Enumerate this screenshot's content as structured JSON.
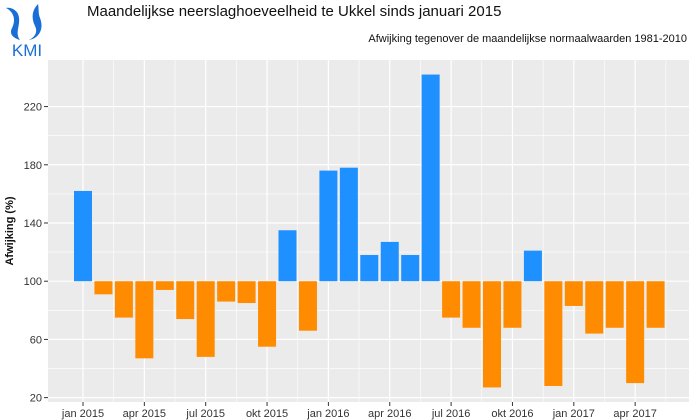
{
  "header": {
    "title": "Maandelijkse neerslaghoeveelheid te Ukkel sinds januari 2015",
    "subtitle": "Afwijking tegenover de maandelijkse normaalwaarden 1981-2010",
    "logo_text": "KMI"
  },
  "colors": {
    "above": "#1e90ff",
    "below": "#ff8c00",
    "panel": "#ebebeb",
    "grid": "#ffffff",
    "logo": "#1a6fd6"
  },
  "chart_data": {
    "type": "bar",
    "title": "Maandelijkse neerslaghoeveelheid te Ukkel sinds januari 2015",
    "subtitle": "Afwijking tegenover de maandelijkse normaalwaarden 1981-2010",
    "xlabel": "",
    "ylabel": "Afwijking (%)",
    "baseline": 100,
    "ylim": [
      17,
      252
    ],
    "yticks": [
      20,
      60,
      100,
      140,
      180,
      220
    ],
    "xtick_labels": [
      "jan 2015",
      "apr 2015",
      "jul 2015",
      "okt 2015",
      "jan 2016",
      "apr 2016",
      "jul 2016",
      "okt 2016",
      "jan 2017",
      "apr 2017"
    ],
    "xtick_month_index": [
      0,
      3,
      6,
      9,
      12,
      15,
      18,
      21,
      24,
      27
    ],
    "categories": [
      "2015-01",
      "2015-02",
      "2015-03",
      "2015-04",
      "2015-05",
      "2015-06",
      "2015-07",
      "2015-08",
      "2015-09",
      "2015-10",
      "2015-11",
      "2015-12",
      "2016-01",
      "2016-02",
      "2016-03",
      "2016-04",
      "2016-05",
      "2016-06",
      "2016-07",
      "2016-08",
      "2016-09",
      "2016-10",
      "2016-11",
      "2016-12",
      "2017-01",
      "2017-02",
      "2017-03",
      "2017-04",
      "2017-05"
    ],
    "values": [
      162,
      91,
      75,
      47,
      94,
      74,
      48,
      86,
      85,
      55,
      135,
      66,
      176,
      178,
      118,
      127,
      118,
      242,
      75,
      68,
      27,
      68,
      121,
      28,
      83,
      64,
      68,
      30,
      68
    ],
    "grid": true
  }
}
